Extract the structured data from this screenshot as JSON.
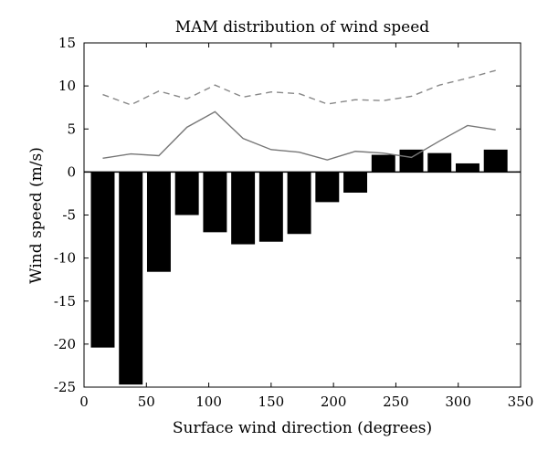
{
  "chart_data": {
    "type": "bar",
    "title": "MAM distribution of wind speed",
    "xlabel": "Surface wind direction (degrees)",
    "ylabel": "Wind speed (m/s)",
    "xlim": [
      0,
      350
    ],
    "ylim": [
      -25,
      15
    ],
    "xticks": [
      0,
      50,
      100,
      150,
      200,
      250,
      300,
      350
    ],
    "yticks": [
      -25,
      -20,
      -15,
      -10,
      -5,
      0,
      5,
      10,
      15
    ],
    "grid": false,
    "legend": "none",
    "bar_width": 19,
    "colors": {
      "bars": "#000000",
      "solid_line": "#777777",
      "dashed_line": "#888888",
      "axes": "#000000"
    },
    "series": [
      {
        "type": "bar",
        "x": [
          15,
          37.5,
          60,
          82.5,
          105,
          127.5,
          150,
          172.5,
          195,
          217.5,
          240,
          262.5,
          285,
          307.5,
          330
        ],
        "values": [
          -20.4,
          -24.7,
          -11.6,
          -5.0,
          -7.0,
          -8.4,
          -8.1,
          -7.2,
          -3.5,
          -2.4,
          2.0,
          2.6,
          2.2,
          1.0,
          2.6
        ]
      },
      {
        "type": "line",
        "style": "solid",
        "x": [
          15,
          37.5,
          60,
          82.5,
          105,
          127.5,
          150,
          172.5,
          195,
          217.5,
          240,
          262.5,
          285,
          307.5,
          330
        ],
        "values": [
          1.6,
          2.1,
          1.9,
          5.2,
          7.0,
          3.9,
          2.6,
          2.3,
          1.4,
          2.4,
          2.2,
          1.7,
          3.6,
          5.4,
          4.9
        ]
      },
      {
        "type": "line",
        "style": "dashed",
        "x": [
          15,
          37.5,
          60,
          82.5,
          105,
          127.5,
          150,
          172.5,
          195,
          217.5,
          240,
          262.5,
          285,
          307.5,
          330
        ],
        "values": [
          9.0,
          7.8,
          9.4,
          8.5,
          10.1,
          8.7,
          9.3,
          9.1,
          7.9,
          8.4,
          8.3,
          8.8,
          10.1,
          10.9,
          11.8
        ]
      }
    ]
  }
}
